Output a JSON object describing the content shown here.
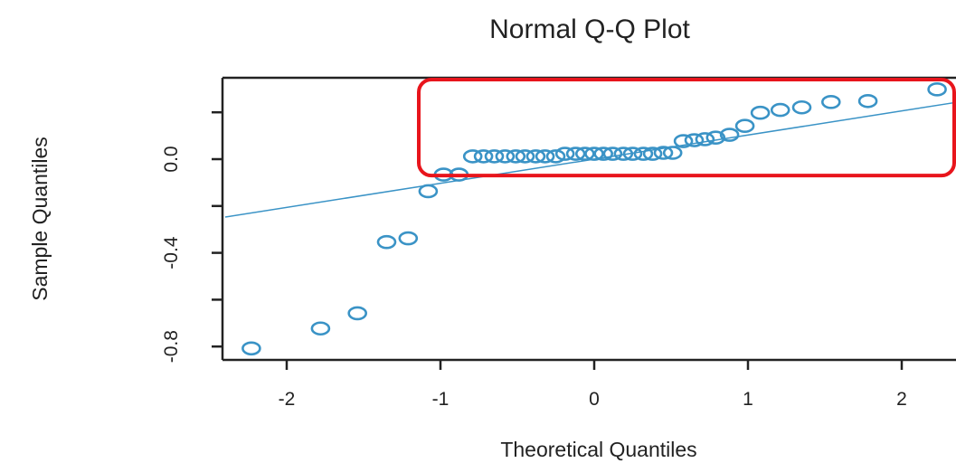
{
  "chart_data": {
    "type": "scatter",
    "title": "Normal Q-Q Plot",
    "xlabel": "Theoretical Quantiles",
    "ylabel": "Sample Quantiles",
    "x_ticks": [
      "-2",
      "-1",
      "0",
      "1",
      "2"
    ],
    "y_ticks": [
      "-0.8",
      "-0.4",
      "0.0"
    ],
    "y_ticks_unlabeled": [
      -0.6,
      -0.2,
      0.2
    ],
    "xlim": [
      -2.4,
      2.35
    ],
    "ylim": [
      -0.86,
      0.34
    ],
    "point_color": "#3a93c6",
    "line_color": "#3a93c6",
    "highlight_color": "#e8151c",
    "points": [
      {
        "x": -2.23,
        "y": -0.808
      },
      {
        "x": -1.78,
        "y": -0.723
      },
      {
        "x": -1.54,
        "y": -0.658
      },
      {
        "x": -1.35,
        "y": -0.354
      },
      {
        "x": -1.21,
        "y": -0.338
      },
      {
        "x": -1.08,
        "y": -0.137
      },
      {
        "x": -0.98,
        "y": -0.066
      },
      {
        "x": -0.88,
        "y": -0.066
      },
      {
        "x": -0.79,
        "y": 0.012
      },
      {
        "x": -0.72,
        "y": 0.012
      },
      {
        "x": -0.65,
        "y": 0.012
      },
      {
        "x": -0.58,
        "y": 0.012
      },
      {
        "x": -0.51,
        "y": 0.012
      },
      {
        "x": -0.45,
        "y": 0.012
      },
      {
        "x": -0.38,
        "y": 0.012
      },
      {
        "x": -0.32,
        "y": 0.012
      },
      {
        "x": -0.25,
        "y": 0.012
      },
      {
        "x": -0.19,
        "y": 0.023
      },
      {
        "x": -0.12,
        "y": 0.023
      },
      {
        "x": -0.06,
        "y": 0.023
      },
      {
        "x": 0.0,
        "y": 0.023
      },
      {
        "x": 0.06,
        "y": 0.023
      },
      {
        "x": 0.12,
        "y": 0.023
      },
      {
        "x": 0.19,
        "y": 0.023
      },
      {
        "x": 0.25,
        "y": 0.023
      },
      {
        "x": 0.32,
        "y": 0.023
      },
      {
        "x": 0.38,
        "y": 0.023
      },
      {
        "x": 0.45,
        "y": 0.027
      },
      {
        "x": 0.51,
        "y": 0.027
      },
      {
        "x": 0.58,
        "y": 0.077
      },
      {
        "x": 0.65,
        "y": 0.081
      },
      {
        "x": 0.72,
        "y": 0.085
      },
      {
        "x": 0.79,
        "y": 0.092
      },
      {
        "x": 0.88,
        "y": 0.104
      },
      {
        "x": 0.98,
        "y": 0.142
      },
      {
        "x": 1.08,
        "y": 0.198
      },
      {
        "x": 1.21,
        "y": 0.21
      },
      {
        "x": 1.35,
        "y": 0.221
      },
      {
        "x": 1.54,
        "y": 0.244
      },
      {
        "x": 1.78,
        "y": 0.248
      },
      {
        "x": 2.23,
        "y": 0.298
      }
    ],
    "reference_line": {
      "intercept": 0.0,
      "slope": 0.103
    },
    "highlight_box": {
      "x_range": [
        -1.15,
        2.35
      ],
      "y_range": [
        -0.07,
        0.34
      ]
    },
    "grid": false,
    "legend": "none"
  }
}
